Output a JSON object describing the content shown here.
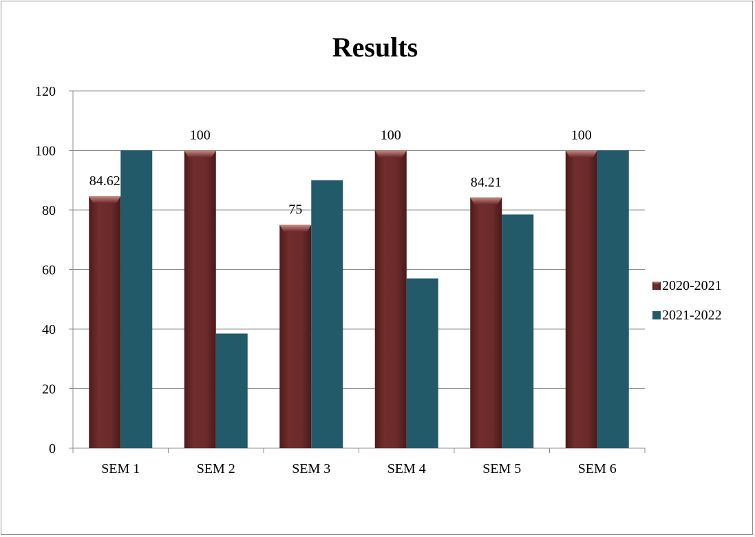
{
  "chart_data": {
    "type": "bar",
    "title": "Results",
    "xlabel": "",
    "ylabel": "",
    "categories": [
      "SEM 1",
      "SEM 2",
      "SEM 3",
      "SEM 4",
      "SEM 5",
      "SEM 6"
    ],
    "series": [
      {
        "name": "2020-2021",
        "values": [
          84.62,
          100,
          75,
          100,
          84.21,
          100
        ],
        "data_labels": [
          "84.62",
          "100",
          "75",
          "100",
          "84.21",
          "100"
        ],
        "color": "#6b2a2a"
      },
      {
        "name": "2021-2022",
        "values": [
          100,
          38.5,
          90,
          57,
          78.5,
          100
        ],
        "color": "#235a6a"
      }
    ],
    "ylim": [
      0,
      120
    ],
    "yticks": [
      0,
      20,
      40,
      60,
      80,
      100,
      120
    ],
    "grid": true,
    "legend": "right"
  }
}
